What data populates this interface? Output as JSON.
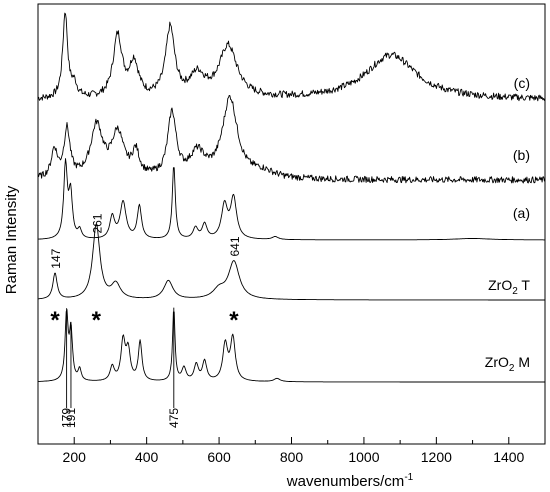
{
  "chart_data": {
    "type": "line",
    "xlabel": "wavenumbers/cm",
    "xlabel_superscript": "-1",
    "ylabel": "Raman Intensity",
    "xlim": [
      100,
      1500
    ],
    "xticks": [
      200,
      400,
      600,
      800,
      1000,
      1200,
      1400
    ],
    "grid": false,
    "series": [
      {
        "name": "(c)",
        "peaks": [
          [
            175,
            1.0,
            8
          ],
          [
            200,
            0.15,
            10
          ],
          [
            320,
            0.72,
            15
          ],
          [
            365,
            0.4,
            15
          ],
          [
            465,
            0.8,
            15
          ],
          [
            540,
            0.25,
            25
          ],
          [
            625,
            0.6,
            30
          ],
          [
            1075,
            0.52,
            85
          ]
        ],
        "noise": 0.04
      },
      {
        "name": "(b)",
        "peaks": [
          [
            145,
            0.35,
            10
          ],
          [
            180,
            0.6,
            10
          ],
          [
            262,
            0.65,
            20
          ],
          [
            320,
            0.55,
            20
          ],
          [
            370,
            0.3,
            12
          ],
          [
            470,
            0.8,
            14
          ],
          [
            540,
            0.3,
            25
          ],
          [
            630,
            1.0,
            25
          ],
          [
            720,
            0.08,
            40
          ]
        ],
        "noise": 0.04
      },
      {
        "name": "(a)",
        "peaks": [
          [
            176,
            1.0,
            6
          ],
          [
            190,
            0.6,
            6
          ],
          [
            215,
            0.12,
            6
          ],
          [
            305,
            0.3,
            8
          ],
          [
            335,
            0.5,
            10
          ],
          [
            380,
            0.45,
            7
          ],
          [
            475,
            1.0,
            5
          ],
          [
            535,
            0.15,
            8
          ],
          [
            560,
            0.2,
            8
          ],
          [
            615,
            0.45,
            10
          ],
          [
            640,
            0.55,
            10
          ],
          [
            755,
            0.04,
            10
          ],
          [
            1300,
            0.02,
            60
          ]
        ],
        "noise": 0.0
      },
      {
        "name": "ZrO",
        "name_subscript": "2",
        "name_suffix": "T",
        "peaks": [
          [
            147,
            0.35,
            7
          ],
          [
            261,
            1.0,
            12
          ],
          [
            315,
            0.2,
            15
          ],
          [
            460,
            0.25,
            15
          ],
          [
            600,
            0.12,
            20
          ],
          [
            641,
            0.5,
            18
          ]
        ],
        "noise": 0.0
      },
      {
        "name": "ZrO",
        "name_subscript": "2",
        "name_suffix": "M",
        "peaks": [
          [
            179,
            1.0,
            5
          ],
          [
            191,
            0.75,
            5
          ],
          [
            215,
            0.18,
            5
          ],
          [
            305,
            0.22,
            7
          ],
          [
            335,
            0.6,
            7
          ],
          [
            349,
            0.45,
            7
          ],
          [
            382,
            0.6,
            6
          ],
          [
            475,
            1.1,
            4
          ],
          [
            503,
            0.2,
            7
          ],
          [
            537,
            0.25,
            7
          ],
          [
            560,
            0.3,
            7
          ],
          [
            617,
            0.55,
            8
          ],
          [
            638,
            0.65,
            8
          ],
          [
            760,
            0.05,
            10
          ]
        ],
        "noise": 0.0
      }
    ],
    "annotations": [
      {
        "text": "261",
        "x": 261,
        "series": 2
      },
      {
        "text": "147",
        "x": 147,
        "series": 3
      },
      {
        "text": "641",
        "x": 641,
        "series": 3
      },
      {
        "text": "179",
        "x": 179,
        "series": 4
      },
      {
        "text": "191",
        "x": 191,
        "series": 4
      },
      {
        "text": "475",
        "x": 475,
        "series": 4
      }
    ],
    "markers": [
      {
        "text": "*",
        "x": 147
      },
      {
        "text": "*",
        "x": 261
      },
      {
        "text": "*",
        "x": 641
      }
    ]
  }
}
